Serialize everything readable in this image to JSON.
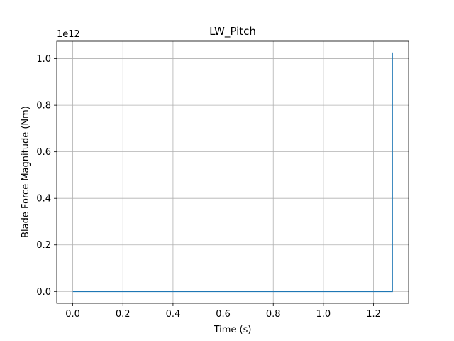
{
  "chart_data": {
    "type": "line",
    "title": "LW_Pitch",
    "xlabel": "Time (s)",
    "ylabel": "Blade Force Magnitude (Nm)",
    "y_offset_text": "1e12",
    "xlim": [
      -0.064,
      1.34
    ],
    "ylim": [
      -0.051,
      1.075
    ],
    "x_ticks": [
      0.0,
      0.2,
      0.4,
      0.6,
      0.8,
      1.0,
      1.2
    ],
    "x_tick_labels": [
      "0.0",
      "0.2",
      "0.4",
      "0.6",
      "0.8",
      "1.0",
      "1.2"
    ],
    "y_ticks": [
      0.0,
      0.2,
      0.4,
      0.6,
      0.8,
      1.0
    ],
    "y_tick_labels": [
      "0.0",
      "0.2",
      "0.4",
      "0.6",
      "0.8",
      "1.0"
    ],
    "grid": true,
    "series": [
      {
        "color": "#1f77b4",
        "x": [
          0.0,
          1.275,
          1.275,
          1.276
        ],
        "y": [
          0.0,
          0.0,
          1.025,
          1.025
        ]
      }
    ]
  }
}
